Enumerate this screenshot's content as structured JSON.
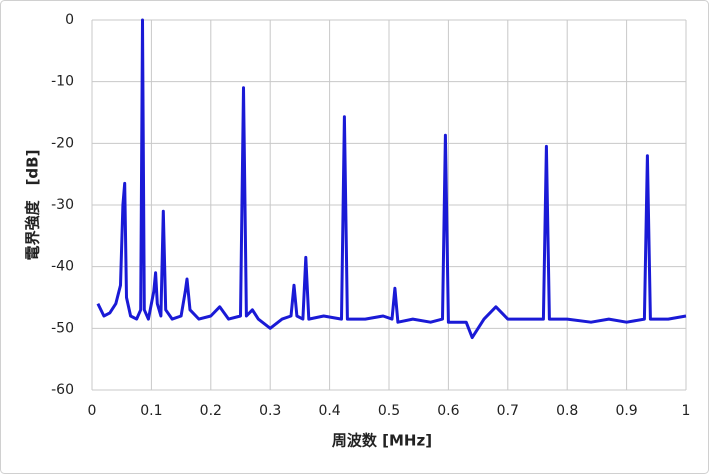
{
  "chart_data": {
    "type": "line",
    "xlabel": "周波数 [MHz]",
    "ylabel": "電界強度　[dB]",
    "x": [
      0.01,
      0.02,
      0.03,
      0.04,
      0.048,
      0.052,
      0.055,
      0.058,
      0.065,
      0.075,
      0.082,
      0.085,
      0.088,
      0.095,
      0.104,
      0.107,
      0.11,
      0.116,
      0.12,
      0.124,
      0.135,
      0.15,
      0.157,
      0.16,
      0.165,
      0.18,
      0.2,
      0.215,
      0.23,
      0.25,
      0.255,
      0.26,
      0.27,
      0.28,
      0.3,
      0.32,
      0.335,
      0.34,
      0.345,
      0.355,
      0.36,
      0.365,
      0.39,
      0.42,
      0.425,
      0.43,
      0.46,
      0.49,
      0.505,
      0.51,
      0.515,
      0.54,
      0.57,
      0.59,
      0.595,
      0.6,
      0.63,
      0.64,
      0.66,
      0.68,
      0.7,
      0.73,
      0.76,
      0.765,
      0.77,
      0.8,
      0.84,
      0.87,
      0.9,
      0.93,
      0.935,
      0.94,
      0.97,
      1
    ],
    "series": [
      {
        "color": "#1a1ad6",
        "values": [
          -46,
          -48,
          -47.5,
          -46,
          -43,
          -30,
          -26.5,
          -45,
          -48,
          -48.5,
          -47,
          0,
          -47,
          -48.5,
          -44,
          -41,
          -46,
          -48,
          -31,
          -47,
          -48.5,
          -48,
          -44,
          -42,
          -47,
          -48.5,
          -48,
          -46.5,
          -48.5,
          -48,
          -11,
          -48,
          -47,
          -48.5,
          -50,
          -48.5,
          -48,
          -43,
          -48,
          -48.5,
          -38.5,
          -48.5,
          -48,
          -48.5,
          -15.7,
          -48.5,
          -48.5,
          -48,
          -48.5,
          -43.5,
          -49,
          -48.5,
          -49,
          -48.5,
          -18.7,
          -49,
          -49,
          -51.5,
          -48.5,
          -46.5,
          -48.5,
          -48.5,
          -48.5,
          -20.5,
          -48.5,
          -48.5,
          -49,
          -48.5,
          -49,
          -48.5,
          -22,
          -48.5,
          -48.5,
          -48
        ]
      }
    ],
    "xlim": [
      0,
      1
    ],
    "xticks": [
      0,
      0.1,
      0.2,
      0.3,
      0.4,
      0.5,
      0.6,
      0.7,
      0.8,
      0.9,
      1
    ],
    "ylim": [
      -60,
      0
    ],
    "yticks": [
      0,
      -10,
      -20,
      -30,
      -40,
      -50,
      -60
    ],
    "grid": true
  }
}
